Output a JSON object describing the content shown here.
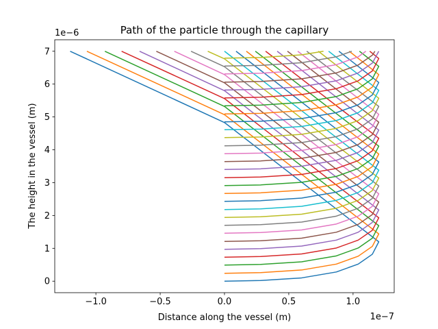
{
  "chart_data": {
    "type": "line",
    "title": "Path of the particle through the capillary",
    "xlabel": "Distance along the vessel (m)",
    "ylabel": "The height in the vessel (m)",
    "x_offset_label": "1e−7",
    "y_offset_label": "1e−6",
    "xlim": [
      -1.32,
      1.32
    ],
    "ylim": [
      -0.35,
      7.35
    ],
    "xticks": [
      {
        "value": -1.0,
        "label": "−1.0"
      },
      {
        "value": -0.5,
        "label": "−0.5"
      },
      {
        "value": 0,
        "label": "0.0"
      },
      {
        "value": 0.5,
        "label": "0.5"
      },
      {
        "value": 1.0,
        "label": "1.0"
      }
    ],
    "yticks": [
      0,
      1,
      2,
      3,
      4,
      5,
      6,
      7
    ],
    "series": [
      {
        "color": "#1f77b4",
        "x": [
          0,
          0.28,
          0.6,
          0.87,
          1.04,
          1.15,
          1.2,
          0,
          -1.2
        ],
        "values": [
          0,
          0.02,
          0.1,
          0.28,
          0.52,
          0.82,
          1.2,
          4.83,
          7
        ]
      },
      {
        "color": "#ff7f0e",
        "x": [
          0,
          0.28,
          0.6,
          0.87,
          1.04,
          1.15,
          1.2,
          0,
          -1.07
        ],
        "values": [
          0.24,
          0.26,
          0.34,
          0.52,
          0.76,
          1.06,
          1.44,
          5.07,
          7
        ]
      },
      {
        "color": "#2ca02c",
        "x": [
          0,
          0.28,
          0.6,
          0.87,
          1.04,
          1.15,
          1.2,
          0,
          -0.93
        ],
        "values": [
          0.49,
          0.51,
          0.59,
          0.77,
          1.01,
          1.31,
          1.69,
          5.32,
          7
        ]
      },
      {
        "color": "#d62728",
        "x": [
          0,
          0.28,
          0.6,
          0.87,
          1.04,
          1.15,
          1.2,
          0,
          -0.8
        ],
        "values": [
          0.73,
          0.75,
          0.83,
          1.01,
          1.25,
          1.55,
          1.93,
          5.56,
          7
        ]
      },
      {
        "color": "#9467bd",
        "x": [
          0,
          0.28,
          0.6,
          0.87,
          1.04,
          1.15,
          1.2,
          0,
          -0.66
        ],
        "values": [
          0.97,
          0.99,
          1.07,
          1.25,
          1.49,
          1.79,
          2.17,
          5.8,
          7
        ]
      },
      {
        "color": "#8c564b",
        "x": [
          0,
          0.28,
          0.6,
          0.87,
          1.04,
          1.15,
          1.2,
          0,
          -0.53
        ],
        "values": [
          1.21,
          1.23,
          1.31,
          1.49,
          1.73,
          2.03,
          2.41,
          6.04,
          7
        ]
      },
      {
        "color": "#e377c2",
        "x": [
          0,
          0.28,
          0.6,
          0.87,
          1.04,
          1.15,
          1.2,
          0,
          -0.39
        ],
        "values": [
          1.46,
          1.48,
          1.56,
          1.74,
          1.98,
          2.28,
          2.66,
          6.29,
          7
        ]
      },
      {
        "color": "#7f7f7f",
        "x": [
          0,
          0.28,
          0.6,
          0.87,
          1.04,
          1.15,
          1.2,
          0,
          -0.26
        ],
        "values": [
          1.7,
          1.72,
          1.8,
          1.98,
          2.22,
          2.52,
          2.9,
          6.53,
          7
        ]
      },
      {
        "color": "#bcbd22",
        "x": [
          0,
          0.28,
          0.6,
          0.87,
          1.04,
          1.15,
          1.2,
          0,
          -0.13
        ],
        "values": [
          1.94,
          1.96,
          2.04,
          2.22,
          2.46,
          2.76,
          3.14,
          6.77,
          7
        ]
      },
      {
        "color": "#17becf",
        "x": [
          0,
          0.28,
          0.6,
          0.87,
          1.04,
          1.15,
          1.2,
          0
        ],
        "values": [
          2.18,
          2.2,
          2.28,
          2.46,
          2.7,
          3.0,
          3.38,
          7
        ]
      },
      {
        "color": "#1f77b4",
        "x": [
          0,
          0.28,
          0.6,
          0.87,
          1.04,
          1.15,
          1.2,
          0.09
        ],
        "values": [
          2.43,
          2.45,
          2.53,
          2.71,
          2.95,
          3.25,
          3.63,
          7
        ]
      },
      {
        "color": "#ff7f0e",
        "x": [
          0,
          0.28,
          0.6,
          0.87,
          1.04,
          1.15,
          1.2,
          0.17
        ],
        "values": [
          2.67,
          2.69,
          2.77,
          2.95,
          3.19,
          3.49,
          3.87,
          7
        ]
      },
      {
        "color": "#2ca02c",
        "x": [
          0,
          0.28,
          0.6,
          0.87,
          1.04,
          1.15,
          1.2,
          0.24
        ],
        "values": [
          2.91,
          2.93,
          3.01,
          3.19,
          3.43,
          3.73,
          4.11,
          7
        ]
      },
      {
        "color": "#d62728",
        "x": [
          0,
          0.28,
          0.6,
          0.87,
          1.04,
          1.15,
          1.2,
          0.32
        ],
        "values": [
          3.15,
          3.17,
          3.25,
          3.43,
          3.67,
          3.97,
          4.35,
          7
        ]
      },
      {
        "color": "#9467bd",
        "x": [
          0,
          0.28,
          0.6,
          0.87,
          1.04,
          1.15,
          1.2,
          0.41
        ],
        "values": [
          3.4,
          3.42,
          3.5,
          3.68,
          3.92,
          4.22,
          4.6,
          7
        ]
      },
      {
        "color": "#8c564b",
        "x": [
          0,
          0.28,
          0.6,
          0.87,
          1.04,
          1.15,
          1.2,
          0.49
        ],
        "values": [
          3.64,
          3.66,
          3.74,
          3.92,
          4.16,
          4.46,
          4.84,
          7
        ]
      },
      {
        "color": "#e377c2",
        "x": [
          0,
          0.28,
          0.6,
          0.87,
          1.04,
          1.15,
          1.2,
          0.57
        ],
        "values": [
          3.88,
          3.9,
          3.98,
          4.16,
          4.4,
          4.7,
          5.08,
          7
        ]
      },
      {
        "color": "#7f7f7f",
        "x": [
          0,
          0.28,
          0.6,
          0.87,
          1.04,
          1.15,
          1.2,
          0.64
        ],
        "values": [
          4.12,
          4.14,
          4.22,
          4.4,
          4.64,
          4.94,
          5.32,
          7
        ]
      },
      {
        "color": "#bcbd22",
        "x": [
          0,
          0.28,
          0.6,
          0.87,
          1.04,
          1.15,
          1.2,
          0.73
        ],
        "values": [
          4.37,
          4.39,
          4.47,
          4.65,
          4.89,
          5.19,
          5.57,
          7
        ]
      },
      {
        "color": "#17becf",
        "x": [
          0,
          0.28,
          0.6,
          0.87,
          1.04,
          1.15,
          1.2,
          0.81
        ],
        "values": [
          4.61,
          4.63,
          4.71,
          4.89,
          5.13,
          5.43,
          5.81,
          7
        ]
      },
      {
        "color": "#1f77b4",
        "x": [
          0,
          0.28,
          0.6,
          0.87,
          1.04,
          1.15,
          1.2,
          0.89
        ],
        "values": [
          4.85,
          4.87,
          4.95,
          5.13,
          5.37,
          5.67,
          6.05,
          7
        ]
      },
      {
        "color": "#ff7f0e",
        "x": [
          0,
          0.28,
          0.6,
          0.87,
          1.04,
          1.15,
          1.2,
          0.97
        ],
        "values": [
          5.09,
          5.11,
          5.19,
          5.37,
          5.61,
          5.91,
          6.29,
          7
        ]
      },
      {
        "color": "#2ca02c",
        "x": [
          0,
          0.28,
          0.6,
          0.87,
          1.04,
          1.15,
          1.2,
          1.05
        ],
        "values": [
          5.34,
          5.36,
          5.44,
          5.62,
          5.86,
          6.16,
          6.54,
          7
        ]
      },
      {
        "color": "#d62728",
        "x": [
          0,
          0.28,
          0.6,
          0.87,
          1.04,
          1.15,
          1.2,
          1.13
        ],
        "values": [
          5.58,
          5.6,
          5.68,
          5.86,
          6.1,
          6.4,
          6.78,
          7
        ]
      },
      {
        "color": "#9467bd",
        "x": [
          0,
          0.28,
          0.6,
          0.87,
          1.04,
          1.15,
          1.2
        ],
        "values": [
          5.82,
          5.84,
          5.92,
          6.1,
          6.34,
          6.64,
          7
        ]
      },
      {
        "color": "#8c564b",
        "x": [
          0,
          0.28,
          0.6,
          0.87,
          1.04,
          1.15,
          1.17
        ],
        "values": [
          6.06,
          6.08,
          6.16,
          6.34,
          6.58,
          6.88,
          7
        ]
      },
      {
        "color": "#e377c2",
        "x": [
          0,
          0.28,
          0.6,
          0.87,
          1.04,
          1.1
        ],
        "values": [
          6.31,
          6.33,
          6.41,
          6.59,
          6.83,
          7
        ]
      },
      {
        "color": "#7f7f7f",
        "x": [
          0,
          0.28,
          0.6,
          0.87,
          0.99
        ],
        "values": [
          6.55,
          6.57,
          6.65,
          6.83,
          7
        ]
      },
      {
        "color": "#bcbd22",
        "x": [
          0,
          0.28,
          0.6,
          0.77
        ],
        "values": [
          6.79,
          6.81,
          6.89,
          7
        ]
      }
    ]
  }
}
